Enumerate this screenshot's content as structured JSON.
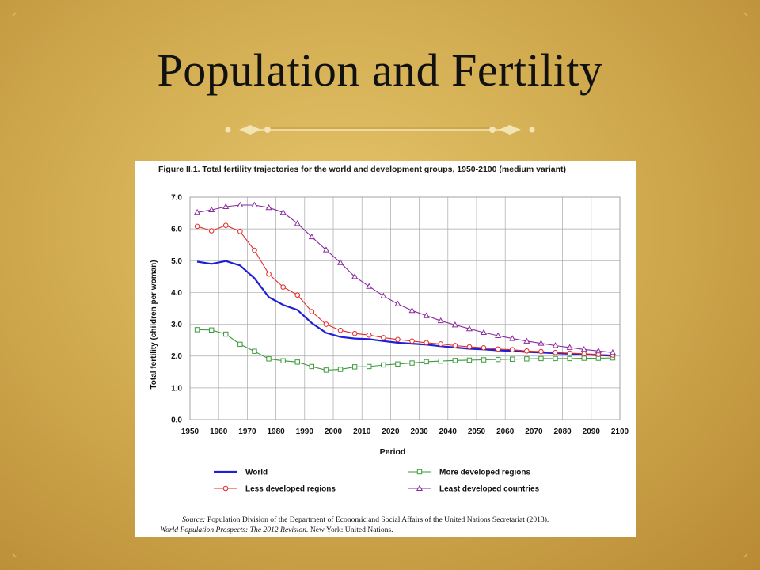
{
  "slide": {
    "title": "Population and Fertility"
  },
  "figure": {
    "caption": "Figure II.1. Total fertility trajectories for the world and development groups, 1950-2100 (medium variant)",
    "source_label": "Source:",
    "source_text": " Population Division of the Department of Economic and Social Affairs of the United Nations Secretariat (2013).",
    "source_title": "World Population Prospects: The 2012 Revision.",
    "source_publisher": " New York: United Nations."
  },
  "colors": {
    "world": "#1f1fd6",
    "more_developed": "#3c9a3c",
    "less_developed": "#e02a2a",
    "least_developed": "#8a2aa0",
    "background": "#d3ad52"
  },
  "chart_data": {
    "type": "line",
    "title": "",
    "xlabel": "Period",
    "ylabel": "Total fertility (children per woman)",
    "xlim": [
      1950,
      2100
    ],
    "ylim": [
      0,
      7
    ],
    "grid": true,
    "legend_position": "bottom",
    "x_ticks": [
      "1950",
      "1960",
      "1970",
      "1980",
      "1990",
      "2000",
      "2010",
      "2020",
      "2030",
      "2040",
      "2050",
      "2060",
      "2070",
      "2080",
      "2090",
      "2100"
    ],
    "y_ticks": [
      "0.0",
      "1.0",
      "2.0",
      "3.0",
      "4.0",
      "5.0",
      "6.0",
      "7.0"
    ],
    "x": [
      1952.5,
      1957.5,
      1962.5,
      1967.5,
      1972.5,
      1977.5,
      1982.5,
      1987.5,
      1992.5,
      1997.5,
      2002.5,
      2007.5,
      2012.5,
      2017.5,
      2022.5,
      2027.5,
      2032.5,
      2037.5,
      2042.5,
      2047.5,
      2052.5,
      2057.5,
      2062.5,
      2067.5,
      2072.5,
      2077.5,
      2082.5,
      2087.5,
      2092.5,
      2097.5
    ],
    "series": [
      {
        "name": "World",
        "key": "world",
        "marker": "none",
        "values": [
          4.97,
          4.9,
          4.99,
          4.85,
          4.45,
          3.85,
          3.61,
          3.45,
          3.04,
          2.73,
          2.6,
          2.55,
          2.53,
          2.47,
          2.42,
          2.39,
          2.36,
          2.31,
          2.27,
          2.23,
          2.21,
          2.18,
          2.16,
          2.13,
          2.11,
          2.09,
          2.07,
          2.05,
          2.03,
          2.01
        ]
      },
      {
        "name": "More developed regions",
        "key": "more_developed",
        "marker": "square",
        "values": [
          2.83,
          2.82,
          2.69,
          2.37,
          2.15,
          1.91,
          1.85,
          1.81,
          1.67,
          1.56,
          1.58,
          1.66,
          1.67,
          1.72,
          1.75,
          1.78,
          1.82,
          1.84,
          1.86,
          1.87,
          1.88,
          1.89,
          1.9,
          1.91,
          1.92,
          1.92,
          1.92,
          1.93,
          1.93,
          1.94
        ]
      },
      {
        "name": "Less developed regions",
        "key": "less_developed",
        "marker": "circle",
        "values": [
          6.08,
          5.94,
          6.11,
          5.92,
          5.33,
          4.58,
          4.17,
          3.92,
          3.4,
          3.0,
          2.81,
          2.71,
          2.66,
          2.58,
          2.52,
          2.47,
          2.42,
          2.38,
          2.33,
          2.29,
          2.26,
          2.22,
          2.2,
          2.16,
          2.14,
          2.11,
          2.09,
          2.07,
          2.05,
          2.03
        ]
      },
      {
        "name": "Least developed countries",
        "key": "least_developed",
        "marker": "triangle",
        "values": [
          6.52,
          6.6,
          6.7,
          6.75,
          6.75,
          6.67,
          6.52,
          6.17,
          5.75,
          5.34,
          4.94,
          4.5,
          4.19,
          3.89,
          3.64,
          3.43,
          3.27,
          3.11,
          2.98,
          2.86,
          2.74,
          2.64,
          2.55,
          2.47,
          2.4,
          2.33,
          2.27,
          2.21,
          2.16,
          2.11
        ]
      }
    ],
    "legend_rows": [
      [
        "World",
        "More developed regions"
      ],
      [
        "Less developed regions",
        "Least developed countries"
      ]
    ]
  }
}
